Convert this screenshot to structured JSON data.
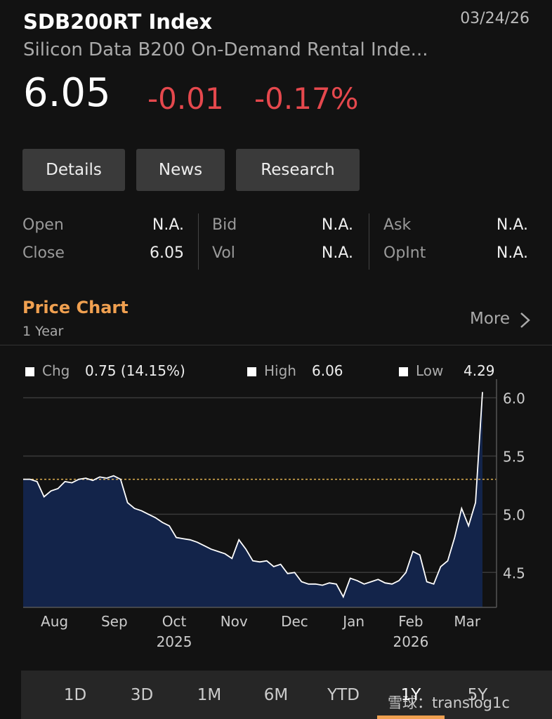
{
  "header": {
    "ticker": "SDB200RT Index",
    "date": "03/24/26",
    "name": "Silicon Data B200 On-Demand Rental Inde...",
    "price": "6.05",
    "change": "-0.01",
    "change_pct": "-0.17%"
  },
  "tabs": [
    "Details",
    "News",
    "Research"
  ],
  "quote": [
    [
      {
        "label": "Open",
        "value": "N.A."
      },
      {
        "label": "Close",
        "value": "6.05"
      }
    ],
    [
      {
        "label": "Bid",
        "value": "N.A."
      },
      {
        "label": "Vol",
        "value": "N.A."
      }
    ],
    [
      {
        "label": "Ask",
        "value": "N.A."
      },
      {
        "label": "OpInt",
        "value": "N.A."
      }
    ]
  ],
  "price_chart": {
    "title": "Price Chart",
    "period": "1 Year",
    "more": "More"
  },
  "chart_data": {
    "type": "area",
    "stats": [
      {
        "label": "Chg",
        "value": "0.75 (14.15%)"
      },
      {
        "label": "High",
        "value": "6.06"
      },
      {
        "label": "Low",
        "value": "4.29"
      }
    ],
    "values": [
      5.3,
      5.3,
      5.28,
      5.15,
      5.2,
      5.22,
      5.28,
      5.27,
      5.3,
      5.31,
      5.29,
      5.32,
      5.31,
      5.33,
      5.3,
      5.1,
      5.05,
      5.03,
      5.0,
      4.97,
      4.93,
      4.9,
      4.8,
      4.79,
      4.78,
      4.76,
      4.73,
      4.7,
      4.68,
      4.66,
      4.62,
      4.78,
      4.7,
      4.6,
      4.59,
      4.6,
      4.55,
      4.57,
      4.49,
      4.5,
      4.42,
      4.4,
      4.4,
      4.39,
      4.41,
      4.4,
      4.29,
      4.45,
      4.43,
      4.4,
      4.42,
      4.44,
      4.41,
      4.4,
      4.43,
      4.5,
      4.68,
      4.65,
      4.42,
      4.4,
      4.55,
      4.6,
      4.8,
      5.05,
      4.9,
      5.1,
      6.05
    ],
    "color": "#ffffff",
    "fill": "#13244a",
    "reference_value": 5.3,
    "reference_color": "#e0b050",
    "xlim": [
      0,
      66
    ],
    "xticks": [
      {
        "value": 4.5,
        "label": "Aug"
      },
      {
        "value": 13.1,
        "label": "Sep"
      },
      {
        "value": 21.7,
        "label": "Oct"
      },
      {
        "value": 30.3,
        "label": "Nov"
      },
      {
        "value": 39.0,
        "label": "Dec"
      },
      {
        "value": 47.5,
        "label": "Jan"
      },
      {
        "value": 55.7,
        "label": "Feb"
      },
      {
        "value": 63.8,
        "label": "Mar"
      }
    ],
    "year_ticks": [
      {
        "value": 21.7,
        "label": "2025"
      },
      {
        "value": 55.7,
        "label": "2026"
      }
    ],
    "ylim": [
      4.2,
      6.13
    ],
    "yticks": [
      4.5,
      {
        "value": 5,
        "label": "5.0"
      },
      5.5,
      {
        "value": 6,
        "label": "6.0"
      }
    ],
    "grid": true
  },
  "ranges": {
    "options": [
      "1D",
      "3D",
      "1M",
      "6M",
      "YTD",
      "1Y",
      "5Y"
    ],
    "selected": 5
  },
  "watermark": "雪球：translog1c"
}
